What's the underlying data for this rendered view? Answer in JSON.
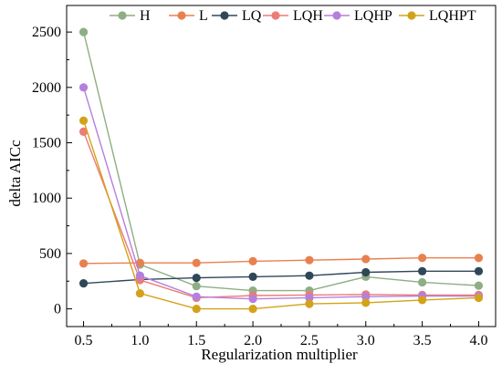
{
  "chart_data": {
    "type": "line",
    "title": "",
    "xlabel": "Regularization multiplier",
    "ylabel": "delta AICc",
    "x": [
      0.5,
      1.0,
      1.5,
      2.0,
      2.5,
      3.0,
      3.5,
      4.0
    ],
    "x_tick_labels": [
      "0.5",
      "1.0",
      "1.5",
      "2.0",
      "2.5",
      "3.0",
      "3.5",
      "4.0"
    ],
    "y_ticks": [
      0,
      500,
      1000,
      1500,
      2000,
      2500
    ],
    "y_tick_labels": [
      "0",
      "500",
      "1000",
      "1500",
      "2000",
      "2500"
    ],
    "xlim": [
      0.35,
      4.15
    ],
    "ylim": [
      -160,
      2740
    ],
    "grid": false,
    "legend_position": "top",
    "series": [
      {
        "name": "H",
        "color": "#8fae84",
        "values": [
          2500,
          400,
          205,
          165,
          165,
          290,
          240,
          210
        ]
      },
      {
        "name": "L",
        "color": "#e8804f",
        "values": [
          410,
          415,
          415,
          430,
          440,
          450,
          460,
          460
        ]
      },
      {
        "name": "LQ",
        "color": "#2f4858",
        "values": [
          230,
          265,
          280,
          290,
          300,
          330,
          340,
          340
        ]
      },
      {
        "name": "LQH",
        "color": "#ec7c77",
        "values": [
          1600,
          260,
          100,
          120,
          125,
          130,
          125,
          125
        ]
      },
      {
        "name": "LQHP",
        "color": "#b57fdd",
        "values": [
          2000,
          300,
          110,
          90,
          100,
          110,
          115,
          115
        ]
      },
      {
        "name": "LQHPT",
        "color": "#d4a21a",
        "values": [
          1700,
          140,
          0,
          0,
          45,
          55,
          80,
          100
        ]
      }
    ]
  }
}
